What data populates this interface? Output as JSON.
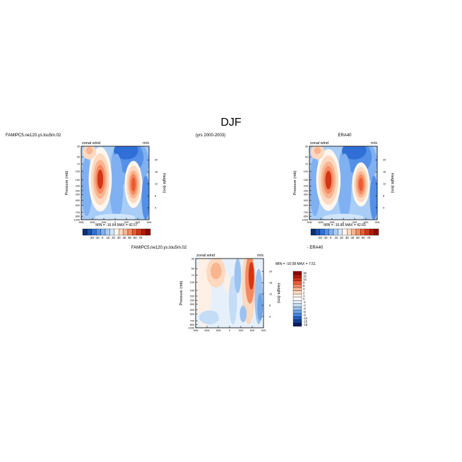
{
  "header": {
    "season": "DJF",
    "case_label": "FAMIPC5.ne120.ys.tou5m.02",
    "years_label": "(yrs 2000-2003)",
    "obs_label": "ERA40"
  },
  "chart_data": [
    {
      "type": "heatmap",
      "panel": "model",
      "title_left": "zonal wind",
      "title_right": "m/s",
      "ylabel": "Pressure (mb)",
      "ylabel_right": "Height (km)",
      "x_ticks": [
        "90N",
        "60N",
        "30N",
        "0",
        "30S",
        "60S",
        "90S"
      ],
      "y_ticks": [
        "30",
        "50",
        "70",
        "100",
        "150",
        "200",
        "250",
        "300",
        "400",
        "500",
        "700",
        "850",
        "1000"
      ],
      "height_ticks": [
        "4",
        "8",
        "12",
        "16",
        "20"
      ],
      "stats": "MIN = -16.64   MAX =  42.57",
      "colorbar_labels": [
        "-20",
        "-10",
        "0",
        "10",
        "20",
        "30",
        "40",
        "50",
        "60",
        "70"
      ]
    },
    {
      "type": "heatmap",
      "panel": "obs",
      "title_left": "zonal wind",
      "title_right": "m/s",
      "ylabel": "Pressure (mb)",
      "ylabel_right": "Height (km)",
      "x_ticks": [
        "90N",
        "60N",
        "30N",
        "0",
        "30S",
        "60S",
        "90S"
      ],
      "y_ticks": [
        "30",
        "50",
        "70",
        "100",
        "150",
        "200",
        "250",
        "300",
        "400",
        "500",
        "700",
        "850",
        "1000"
      ],
      "height_ticks": [
        "4",
        "8",
        "12",
        "16",
        "20"
      ],
      "stats": "MIN = -16.85   MAX =  42.65",
      "colorbar_labels": [
        "-20",
        "-10",
        "0",
        "10",
        "20",
        "30",
        "40",
        "50",
        "60",
        "70"
      ]
    },
    {
      "type": "heatmap",
      "panel": "difference",
      "title_top": "FAMIPC5.ne120.ys.tou5m.02",
      "title_top_suffix": "- ERA40",
      "title_left": "zonal wind",
      "title_right": "m/s",
      "ylabel": "Pressure (mb)",
      "ylabel_right": "Height (km)",
      "x_ticks": [
        "90N",
        "60N",
        "30N",
        "0",
        "30S",
        "60S",
        "90S"
      ],
      "y_ticks": [
        "30",
        "50",
        "70",
        "100",
        "150",
        "200",
        "250",
        "300",
        "400",
        "500",
        "700",
        "850",
        "1000"
      ],
      "height_ticks": [
        "4",
        "8",
        "12",
        "16",
        "20"
      ],
      "stats": "MIN = -10.08   MAX =    7.51",
      "colorbar_labels": [
        "18",
        "15",
        "12",
        "9",
        "6",
        "4",
        "2",
        "1",
        "0",
        "-1",
        "-2",
        "-4",
        "-6",
        "-9",
        "-12",
        "-15",
        "-18"
      ]
    }
  ],
  "colors": {
    "full_scale": [
      "#08306b",
      "#1b4fa8",
      "#2f6fd6",
      "#5590e8",
      "#7fb0f2",
      "#a8cdf6",
      "#d2e6fb",
      "#fff7ef",
      "#fcd9bf",
      "#f9b490",
      "#f58a62",
      "#ec5b34",
      "#d33515",
      "#b01a0a",
      "#8a0c05"
    ],
    "diff_scale": [
      "#8a0c05",
      "#b01a0a",
      "#d33515",
      "#ec5b34",
      "#f58a62",
      "#f9b490",
      "#fcd9bf",
      "#fff0e6",
      "#ffffff",
      "#e6f0fb",
      "#c4dcf6",
      "#9cc2f0",
      "#6ea3e6",
      "#4482da",
      "#245fc0",
      "#113f94",
      "#061f5c"
    ]
  }
}
